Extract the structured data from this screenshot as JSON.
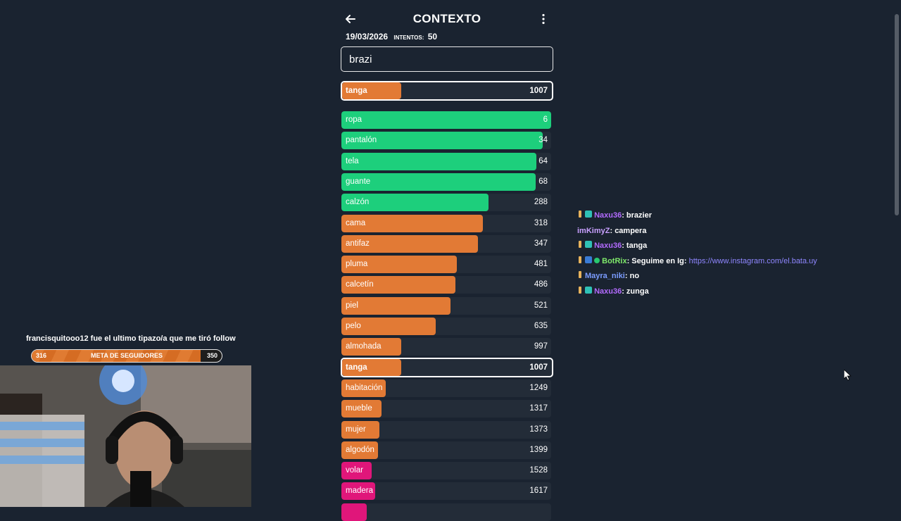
{
  "header": {
    "title": "CONTEXTO"
  },
  "meta": {
    "date": "19/03/2026",
    "attempts_label": "INTENTOS:",
    "attempts": "50"
  },
  "guess_input": {
    "value": "brazi"
  },
  "last_guess": {
    "word": "tanga",
    "rank": "1007",
    "ratio": 0.28
  },
  "words": [
    {
      "word": "ropa",
      "rank": "6",
      "ratio": 1.0,
      "color": "#1dcf7c"
    },
    {
      "word": "pantalón",
      "rank": "34",
      "ratio": 0.96,
      "color": "#1dcf7c"
    },
    {
      "word": "tela",
      "rank": "64",
      "ratio": 0.93,
      "color": "#1dcf7c"
    },
    {
      "word": "guante",
      "rank": "68",
      "ratio": 0.925,
      "color": "#1dcf7c"
    },
    {
      "word": "calzón",
      "rank": "288",
      "ratio": 0.7,
      "color": "#1dcf7c"
    },
    {
      "word": "cama",
      "rank": "318",
      "ratio": 0.675,
      "color": "#e27a35"
    },
    {
      "word": "antifaz",
      "rank": "347",
      "ratio": 0.65,
      "color": "#e27a35"
    },
    {
      "word": "pluma",
      "rank": "481",
      "ratio": 0.55,
      "color": "#e27a35"
    },
    {
      "word": "calcetín",
      "rank": "486",
      "ratio": 0.545,
      "color": "#e27a35"
    },
    {
      "word": "piel",
      "rank": "521",
      "ratio": 0.52,
      "color": "#e27a35"
    },
    {
      "word": "pelo",
      "rank": "635",
      "ratio": 0.45,
      "color": "#e27a35"
    },
    {
      "word": "almohada",
      "rank": "997",
      "ratio": 0.285,
      "color": "#e27a35"
    },
    {
      "word": "tanga",
      "rank": "1007",
      "ratio": 0.28,
      "color": "#e27a35",
      "current": true
    },
    {
      "word": "habitación",
      "rank": "1249",
      "ratio": 0.21,
      "color": "#e27a35"
    },
    {
      "word": "mueble",
      "rank": "1317",
      "ratio": 0.19,
      "color": "#e27a35"
    },
    {
      "word": "mujer",
      "rank": "1373",
      "ratio": 0.18,
      "color": "#e27a35"
    },
    {
      "word": "algodón",
      "rank": "1399",
      "ratio": 0.175,
      "color": "#e27a35"
    },
    {
      "word": "volar",
      "rank": "1528",
      "ratio": 0.145,
      "color": "#e0167a"
    },
    {
      "word": "madera",
      "rank": "1617",
      "ratio": 0.16,
      "color": "#e0167a"
    },
    {
      "word": "",
      "rank": "",
      "ratio": 0.12,
      "color": "#e0167a"
    }
  ],
  "follower_goal": {
    "message": "francisquitooo12 fue el ultimo tipazo/a que me tiró follow",
    "current": "316",
    "label": "META DE SEGUIDORES",
    "target": "350",
    "progress": 0.89
  },
  "chat": [
    {
      "user": "Naxu36",
      "user_color": "#b36bff",
      "text": ": brazier"
    },
    {
      "user": "imKimyZ",
      "user_color": "#c9a0ff",
      "text": ": campera"
    },
    {
      "user": "Naxu36",
      "user_color": "#b36bff",
      "text": ": tanga"
    },
    {
      "user": "BotRix",
      "user_color": "#7fe86a",
      "text": ": Seguime en Ig: ",
      "link": "https://www.instagram.com/el.bata.uy"
    },
    {
      "user": "Mayra_niki",
      "user_color": "#7b9cff",
      "text": ": no"
    },
    {
      "user": "Naxu36",
      "user_color": "#b36bff",
      "text": ": zunga"
    }
  ],
  "colors": {
    "background": "#1a2330",
    "green": "#1dcf7c",
    "orange": "#e27a35",
    "pink": "#e0167a"
  }
}
